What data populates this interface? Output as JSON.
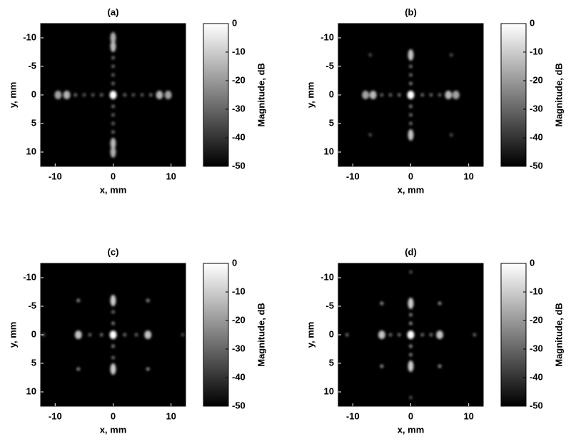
{
  "chart_data": [
    {
      "type": "heatmap",
      "title": "(a)",
      "xlabel": "x, mm",
      "ylabel": "y, mm",
      "xlim": [
        -12.5,
        12.5
      ],
      "ylim": [
        12.5,
        -12.5
      ],
      "xticks": [
        -10,
        0,
        10
      ],
      "yticks": [
        -10,
        -5,
        0,
        5,
        10
      ],
      "colorbar": {
        "label": "Magnitude, dB",
        "lim": [
          -50,
          0
        ],
        "ticks": [
          0,
          -10,
          -20,
          -30,
          -40,
          -50
        ]
      },
      "points": {
        "x": [
          0,
          -2,
          2,
          -3.5,
          3.5,
          -5,
          5,
          -6.5,
          6.5,
          -8,
          8,
          -9.5,
          9.5,
          0,
          0,
          0,
          0,
          0,
          0,
          0,
          0,
          0,
          0,
          0,
          0
        ],
        "y": [
          0,
          0,
          0,
          0,
          0,
          0,
          0,
          0,
          0,
          0,
          0,
          0,
          0,
          -2,
          2,
          -3.5,
          3.5,
          -5,
          5,
          -6.5,
          6.5,
          -8.5,
          8.5,
          -10,
          10
        ],
        "values": [
          0,
          -30,
          -30,
          -32,
          -32,
          -32,
          -32,
          -28,
          -28,
          -15,
          -15,
          -18,
          -18,
          -28,
          -28,
          -30,
          -30,
          -30,
          -30,
          -28,
          -28,
          -14,
          -14,
          -16,
          -16
        ]
      }
    },
    {
      "type": "heatmap",
      "title": "(b)",
      "xlabel": "x, mm",
      "ylabel": "y, mm",
      "xlim": [
        -12.5,
        12.5
      ],
      "ylim": [
        12.5,
        -12.5
      ],
      "xticks": [
        -10,
        0,
        10
      ],
      "yticks": [
        -10,
        -5,
        0,
        5,
        10
      ],
      "colorbar": {
        "label": "Magnitude, dB",
        "lim": [
          -50,
          0
        ],
        "ticks": [
          0,
          -10,
          -20,
          -30,
          -40,
          -50
        ]
      },
      "points": {
        "x": [
          0,
          -2,
          2,
          -3.5,
          3.5,
          -5,
          5,
          -6.5,
          6.5,
          -7.8,
          7.8,
          0,
          0,
          0,
          0,
          0,
          0,
          0,
          0,
          -7,
          7,
          -7,
          7
        ],
        "y": [
          0,
          0,
          0,
          0,
          0,
          0,
          0,
          0,
          0,
          0,
          0,
          -2,
          2,
          -3.5,
          3.5,
          -5,
          5,
          -7,
          7,
          -7,
          -7,
          7,
          7
        ],
        "values": [
          0,
          -28,
          -28,
          -30,
          -30,
          -30,
          -30,
          -14,
          -14,
          -18,
          -18,
          -25,
          -25,
          -28,
          -28,
          -28,
          -28,
          -12,
          -12,
          -35,
          -35,
          -35,
          -35
        ]
      }
    },
    {
      "type": "heatmap",
      "title": "(c)",
      "xlabel": "x, mm",
      "ylabel": "y, mm",
      "xlim": [
        -12.5,
        12.5
      ],
      "ylim": [
        12.5,
        -12.5
      ],
      "xticks": [
        -10,
        0,
        10
      ],
      "yticks": [
        -10,
        -5,
        0,
        5,
        10
      ],
      "colorbar": {
        "label": "Magnitude, dB",
        "lim": [
          -50,
          0
        ],
        "ticks": [
          0,
          -10,
          -20,
          -30,
          -40,
          -50
        ]
      },
      "points": {
        "x": [
          0,
          -2,
          2,
          -4,
          4,
          -6,
          6,
          0,
          0,
          0,
          0,
          0,
          0,
          -6,
          6,
          -6,
          6,
          -12,
          12
        ],
        "y": [
          0,
          0,
          0,
          0,
          0,
          0,
          0,
          -2,
          2,
          -4,
          4,
          -6,
          6,
          -6,
          -6,
          6,
          6,
          0,
          0
        ],
        "values": [
          0,
          -28,
          -28,
          -30,
          -30,
          -12,
          -12,
          -25,
          -25,
          -28,
          -28,
          -10,
          -10,
          -22,
          -22,
          -22,
          -22,
          -35,
          -35
        ]
      }
    },
    {
      "type": "heatmap",
      "title": "(d)",
      "xlabel": "x, mm",
      "ylabel": "y, mm",
      "xlim": [
        -12.5,
        12.5
      ],
      "ylim": [
        12.5,
        -12.5
      ],
      "xticks": [
        -10,
        0,
        10
      ],
      "yticks": [
        -10,
        -5,
        0,
        5,
        10
      ],
      "colorbar": {
        "label": "Magnitude, dB",
        "lim": [
          -50,
          0
        ],
        "ticks": [
          0,
          -10,
          -20,
          -30,
          -40,
          -50
        ]
      },
      "points": {
        "x": [
          0,
          -2,
          2,
          -3.5,
          3.5,
          -5,
          5,
          0,
          0,
          0,
          0,
          0,
          0,
          -5,
          5,
          -5,
          5,
          -11,
          11,
          0,
          0
        ],
        "y": [
          0,
          0,
          0,
          0,
          0,
          0,
          0,
          -2,
          2,
          -3.5,
          3.5,
          -5.5,
          5.5,
          -5.5,
          -5.5,
          5.5,
          5.5,
          0,
          0,
          -11,
          11
        ],
        "values": [
          0,
          -28,
          -28,
          -28,
          -28,
          -12,
          -12,
          -22,
          -22,
          -25,
          -25,
          -10,
          -10,
          -22,
          -22,
          -22,
          -22,
          -30,
          -30,
          -35,
          -35
        ]
      }
    }
  ]
}
